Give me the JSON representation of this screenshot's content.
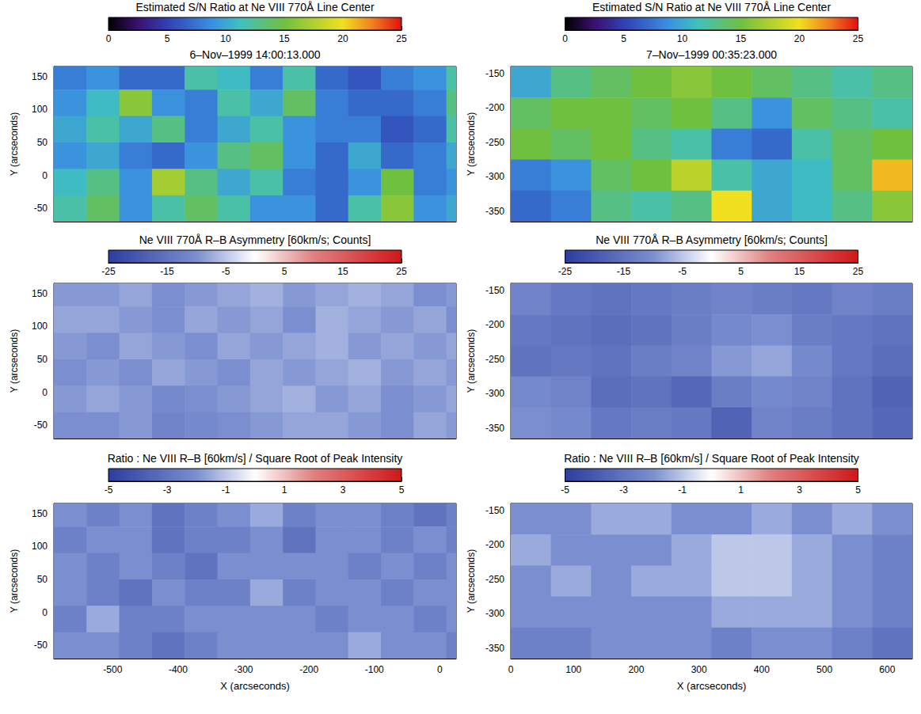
{
  "chart_data": [
    {
      "type": "heatmap",
      "title": "Estimated S/N Ratio at Ne VIII 770Å Line Center",
      "subtitle": "6–Nov–1999 14:00:13.000",
      "x": [
        -565,
        -515,
        -465,
        -415,
        -365,
        -315,
        -265,
        -215,
        -165,
        -115,
        -65,
        -15,
        35
      ],
      "y": [
        150,
        110,
        70,
        30,
        -10,
        -50
      ],
      "values": [
        [
          8,
          9,
          7,
          7,
          12,
          11,
          8,
          12,
          7,
          6,
          8,
          9,
          12
        ],
        [
          9,
          11,
          16,
          9,
          8,
          12,
          10,
          14,
          8,
          7,
          7,
          8,
          13
        ],
        [
          10,
          12,
          10,
          13,
          8,
          10,
          12,
          9,
          8,
          8,
          6,
          7,
          12
        ],
        [
          9,
          10,
          8,
          7,
          9,
          13,
          14,
          9,
          7,
          10,
          7,
          8,
          10
        ],
        [
          11,
          13,
          9,
          17,
          13,
          10,
          12,
          8,
          7,
          9,
          15,
          8,
          9
        ],
        [
          12,
          14,
          9,
          12,
          14,
          12,
          9,
          9,
          7,
          12,
          16,
          9,
          10
        ]
      ],
      "xlim": [
        -590,
        25
      ],
      "xticks": [
        -500,
        -400,
        -300,
        -200,
        -100,
        0
      ],
      "ylim": [
        -70,
        165
      ],
      "yticks": [
        -50,
        0,
        50,
        100,
        150
      ],
      "ylabel": "Y (arcseconds)",
      "tick_labels": "y",
      "colorbar": {
        "range": [
          0,
          25
        ],
        "ticks": [
          0,
          5,
          10,
          15,
          20,
          25
        ]
      }
    },
    {
      "type": "heatmap",
      "title": "Estimated S/N Ratio at Ne VIII 770Å Line Center",
      "subtitle": "7–Nov–1999 00:35:23.000",
      "x": [
        32,
        96,
        160,
        224,
        288,
        352,
        416,
        480,
        544,
        608
      ],
      "y": [
        -162.5,
        -207.5,
        -252.5,
        -297.5,
        -342.5
      ],
      "values": [
        [
          10,
          13,
          14,
          15,
          16,
          15,
          14,
          13,
          12,
          13
        ],
        [
          14,
          15,
          15,
          14,
          15,
          13,
          9,
          14,
          13,
          12
        ],
        [
          15,
          14,
          15,
          13,
          12,
          8,
          7,
          12,
          14,
          15
        ],
        [
          8,
          9,
          14,
          15,
          18,
          12,
          10,
          11,
          14,
          21
        ],
        [
          7,
          8,
          13,
          12,
          13,
          20,
          10,
          11,
          13,
          16
        ]
      ],
      "xlim": [
        0,
        640
      ],
      "xticks": [
        0,
        100,
        200,
        300,
        400,
        500,
        600
      ],
      "ylim": [
        -365,
        -140
      ],
      "yticks": [
        -350,
        -300,
        -250,
        -200,
        -150
      ],
      "ylabel": "Y (arcseconds)",
      "tick_labels": "y",
      "colorbar": {
        "range": [
          0,
          25
        ],
        "ticks": [
          0,
          5,
          10,
          15,
          20,
          25
        ]
      }
    },
    {
      "type": "heatmap",
      "title": "Ne VIII 770Å R–B Asymmetry [60km/s; Counts]",
      "x": [
        -565,
        -515,
        -465,
        -415,
        -365,
        -315,
        -265,
        -215,
        -165,
        -115,
        -65,
        -15,
        35
      ],
      "y": [
        150,
        110,
        70,
        30,
        -10,
        -50
      ],
      "values": [
        [
          -9,
          -9,
          -8,
          -10,
          -9,
          -8,
          -7,
          -9,
          -8,
          -7,
          -8,
          -10,
          -9
        ],
        [
          -8,
          -8,
          -9,
          -10,
          -8,
          -9,
          -8,
          -10,
          -7,
          -8,
          -9,
          -8,
          -10
        ],
        [
          -9,
          -10,
          -8,
          -9,
          -10,
          -8,
          -9,
          -8,
          -7,
          -9,
          -8,
          -9,
          -8
        ],
        [
          -10,
          -9,
          -10,
          -8,
          -9,
          -10,
          -8,
          -9,
          -8,
          -7,
          -9,
          -8,
          -9
        ],
        [
          -9,
          -8,
          -9,
          -11,
          -10,
          -9,
          -8,
          -7,
          -9,
          -8,
          -10,
          -9,
          -8
        ],
        [
          -10,
          -10,
          -9,
          -12,
          -11,
          -10,
          -9,
          -8,
          -8,
          -9,
          -10,
          -8,
          -9
        ]
      ],
      "xlim": [
        -590,
        25
      ],
      "xticks": [
        -500,
        -400,
        -300,
        -200,
        -100,
        0
      ],
      "ylim": [
        -70,
        165
      ],
      "yticks": [
        -50,
        0,
        50,
        100,
        150
      ],
      "ylabel": "Y (arcseconds)",
      "tick_labels": "y",
      "colorbar": {
        "range": [
          -25,
          25
        ],
        "ticks": [
          -25,
          -15,
          -5,
          5,
          15,
          25
        ]
      }
    },
    {
      "type": "heatmap",
      "title": "Ne VIII 770Å R–B Asymmetry [60km/s; Counts]",
      "x": [
        32,
        96,
        160,
        224,
        288,
        352,
        416,
        480,
        544,
        608
      ],
      "y": [
        -162.5,
        -207.5,
        -252.5,
        -297.5,
        -342.5
      ],
      "values": [
        [
          -12,
          -14,
          -15,
          -14,
          -13,
          -12,
          -13,
          -14,
          -12,
          -13
        ],
        [
          -14,
          -15,
          -16,
          -15,
          -13,
          -11,
          -10,
          -13,
          -14,
          -15
        ],
        [
          -15,
          -14,
          -15,
          -13,
          -12,
          -9,
          -8,
          -11,
          -14,
          -16
        ],
        [
          -11,
          -12,
          -16,
          -15,
          -17,
          -13,
          -11,
          -12,
          -15,
          -18
        ],
        [
          -10,
          -11,
          -14,
          -13,
          -14,
          -18,
          -12,
          -13,
          -15,
          -17
        ]
      ],
      "xlim": [
        0,
        640
      ],
      "xticks": [
        0,
        100,
        200,
        300,
        400,
        500,
        600
      ],
      "ylim": [
        -365,
        -140
      ],
      "yticks": [
        -350,
        -300,
        -250,
        -200,
        -150
      ],
      "ylabel": "Y (arcseconds)",
      "tick_labels": "y",
      "colorbar": {
        "range": [
          -25,
          25
        ],
        "ticks": [
          -25,
          -15,
          -5,
          5,
          15,
          25
        ]
      }
    },
    {
      "type": "heatmap",
      "title": "Ratio : Ne VIII R–B [60km/s] / Square Root of Peak Intensity",
      "x": [
        -565,
        -515,
        -465,
        -415,
        -365,
        -315,
        -265,
        -215,
        -165,
        -115,
        -65,
        -15,
        35
      ],
      "y": [
        150,
        110,
        70,
        30,
        -10,
        -50
      ],
      "values": [
        [
          -2,
          -2.5,
          -2,
          -3,
          -2.5,
          -2,
          -1.5,
          -2.5,
          -2,
          -2,
          -2.5,
          -3,
          -2.5
        ],
        [
          -2.5,
          -2,
          -2,
          -3,
          -2.5,
          -2.5,
          -2,
          -3,
          -2,
          -2,
          -2.5,
          -2,
          -2.5
        ],
        [
          -2,
          -2.5,
          -2,
          -2.5,
          -3,
          -2,
          -2,
          -2,
          -2,
          -2.5,
          -2,
          -2.5,
          -2
        ],
        [
          -2,
          -2.5,
          -3,
          -2,
          -2.5,
          -2.5,
          -1.5,
          -2.5,
          -2,
          -2,
          -2.5,
          -2,
          -2
        ],
        [
          -2.5,
          -1.5,
          -2.5,
          -2.5,
          -2,
          -2,
          -2,
          -2,
          -2.5,
          -2,
          -2,
          -2.5,
          -2
        ],
        [
          -2,
          -2,
          -2.5,
          -3,
          -2.5,
          -2,
          -2,
          -2,
          -2,
          -1.5,
          -2,
          -2,
          -2.5
        ]
      ],
      "xlim": [
        -590,
        25
      ],
      "xticks": [
        -500,
        -400,
        -300,
        -200,
        -100,
        0
      ],
      "ylim": [
        -70,
        165
      ],
      "yticks": [
        -50,
        0,
        50,
        100,
        150
      ],
      "xlabel": "X (arcseconds)",
      "ylabel": "Y (arcseconds)",
      "colorbar": {
        "range": [
          -5,
          5
        ],
        "ticks": [
          -5,
          -3,
          -1,
          1,
          3,
          5
        ]
      }
    },
    {
      "type": "heatmap",
      "title": "Ratio : Ne VIII R–B [60km/s] / Square Root of Peak Intensity",
      "x": [
        32,
        96,
        160,
        224,
        288,
        352,
        416,
        480,
        544,
        608
      ],
      "y": [
        -162.5,
        -207.5,
        -252.5,
        -297.5,
        -342.5
      ],
      "values": [
        [
          -2,
          -2,
          -1.5,
          -1.5,
          -2,
          -2,
          -1.5,
          -2,
          -1.5,
          -2
        ],
        [
          -1.5,
          -2,
          -2,
          -2,
          -1.5,
          -1,
          -1,
          -1.5,
          -2,
          -2.5
        ],
        [
          -2,
          -1.5,
          -2,
          -1.5,
          -1.5,
          -1,
          -1,
          -1.5,
          -2,
          -2.5
        ],
        [
          -2,
          -2,
          -2,
          -2,
          -2,
          -1.5,
          -1.5,
          -1.5,
          -2,
          -2.5
        ],
        [
          -2.5,
          -2.5,
          -2,
          -2,
          -2,
          -2.5,
          -2,
          -2,
          -2.5,
          -3
        ]
      ],
      "xlim": [
        0,
        640
      ],
      "xticks": [
        0,
        100,
        200,
        300,
        400,
        500,
        600
      ],
      "ylim": [
        -365,
        -140
      ],
      "yticks": [
        -350,
        -300,
        -250,
        -200,
        -150
      ],
      "xlabel": "X (arcseconds)",
      "ylabel": "Y (arcseconds)",
      "colorbar": {
        "range": [
          -5,
          5
        ],
        "ticks": [
          -5,
          -3,
          -1,
          1,
          3,
          5
        ]
      }
    }
  ]
}
